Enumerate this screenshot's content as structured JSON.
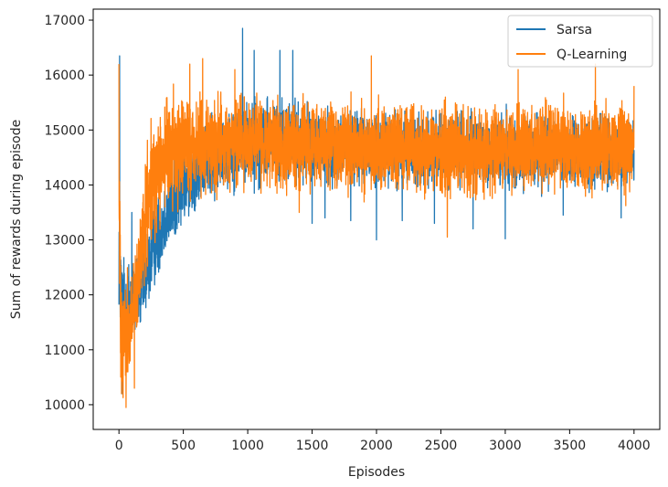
{
  "chart_data": {
    "type": "line",
    "title": "",
    "xlabel": "Episodes",
    "ylabel": "Sum of rewards during episode",
    "xlim": [
      -200,
      4200
    ],
    "ylim": [
      9550,
      17200
    ],
    "xticks": [
      0,
      500,
      1000,
      1500,
      2000,
      2500,
      3000,
      3500,
      4000
    ],
    "yticks": [
      10000,
      11000,
      12000,
      13000,
      14000,
      15000,
      16000,
      17000
    ],
    "grid": false,
    "legend_position": "top-right",
    "series": [
      {
        "name": "Sarsa",
        "color": "#1f77b4",
        "trend": {
          "x": [
            0,
            20,
            60,
            100,
            150,
            200,
            250,
            300,
            400,
            500,
            600,
            700,
            800,
            900,
            1000,
            1200,
            1400,
            1600,
            2000,
            2500,
            3000,
            3500,
            4000
          ],
          "center": [
            13000,
            11800,
            11700,
            11900,
            12100,
            12300,
            12700,
            13100,
            13600,
            14000,
            14300,
            14500,
            14600,
            14750,
            14800,
            14800,
            14750,
            14700,
            14650,
            14650,
            14600,
            14600,
            14600
          ],
          "spread": [
            1600,
            1200,
            1100,
            1000,
            900,
            900,
            850,
            850,
            850,
            800,
            800,
            800,
            850,
            900,
            900,
            850,
            800,
            750,
            750,
            750,
            750,
            700,
            700
          ]
        },
        "spikes": [
          {
            "x": 5,
            "y": 16350
          },
          {
            "x": 25,
            "y": 10200
          },
          {
            "x": 100,
            "y": 13500
          },
          {
            "x": 960,
            "y": 16850
          },
          {
            "x": 1050,
            "y": 16450
          },
          {
            "x": 1250,
            "y": 16450
          },
          {
            "x": 1350,
            "y": 16450
          },
          {
            "x": 1500,
            "y": 13300
          },
          {
            "x": 1600,
            "y": 13400
          },
          {
            "x": 1800,
            "y": 13350
          },
          {
            "x": 2000,
            "y": 13000
          },
          {
            "x": 2200,
            "y": 13350
          },
          {
            "x": 2450,
            "y": 13300
          },
          {
            "x": 2750,
            "y": 13200
          },
          {
            "x": 3000,
            "y": 13020
          },
          {
            "x": 3450,
            "y": 13450
          },
          {
            "x": 3900,
            "y": 13400
          }
        ]
      },
      {
        "name": "Q-Learning",
        "color": "#ff7f0e",
        "trend": {
          "x": [
            0,
            20,
            60,
            100,
            150,
            200,
            250,
            300,
            400,
            500,
            600,
            700,
            800,
            900,
            1000,
            1200,
            1400,
            1600,
            2000,
            2500,
            3000,
            3500,
            4000
          ],
          "center": [
            13500,
            11500,
            11300,
            11600,
            12200,
            13300,
            13900,
            14300,
            14600,
            14700,
            14750,
            14750,
            14750,
            14750,
            14750,
            14750,
            14700,
            14700,
            14700,
            14650,
            14650,
            14650,
            14650
          ],
          "spread": [
            2300,
            1400,
            1200,
            1100,
            1100,
            1200,
            1200,
            1150,
            1100,
            1050,
            1050,
            1000,
            1000,
            1000,
            1000,
            950,
            900,
            900,
            900,
            900,
            900,
            900,
            900
          ]
        },
        "spikes": [
          {
            "x": 0,
            "y": 16200
          },
          {
            "x": 20,
            "y": 10200
          },
          {
            "x": 55,
            "y": 9950
          },
          {
            "x": 120,
            "y": 10300
          },
          {
            "x": 550,
            "y": 16200
          },
          {
            "x": 650,
            "y": 16300
          },
          {
            "x": 900,
            "y": 16100
          },
          {
            "x": 1400,
            "y": 13500
          },
          {
            "x": 1960,
            "y": 16350
          },
          {
            "x": 2550,
            "y": 13050
          },
          {
            "x": 3100,
            "y": 16100
          },
          {
            "x": 3700,
            "y": 16200
          },
          {
            "x": 4000,
            "y": 13650
          },
          {
            "x": 4000,
            "y": 15800
          }
        ]
      }
    ]
  }
}
